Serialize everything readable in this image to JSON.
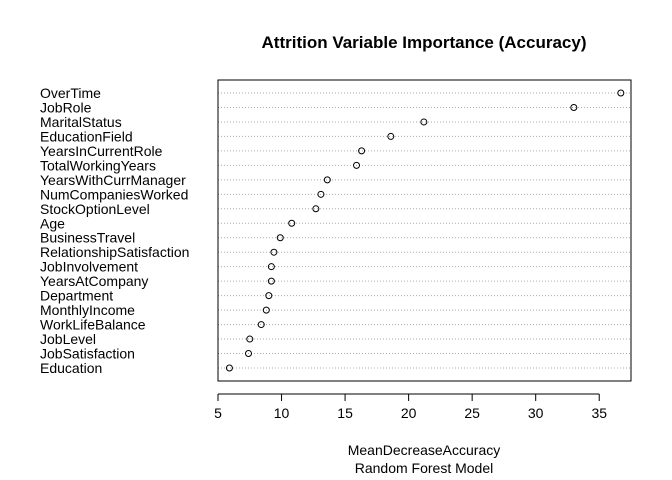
{
  "chart_data": {
    "type": "scatter",
    "title": "Attrition Variable Importance (Accuracy)",
    "xlabel": "MeanDecreaseAccuracy",
    "subtitle": "Random Forest Model",
    "ylabel": "",
    "xlim": [
      5.0,
      37.5
    ],
    "xticks": [
      "5",
      "10",
      "15",
      "20",
      "25",
      "30",
      "35"
    ],
    "grid": "dotted horizontal guide lines",
    "categories": [
      "OverTime",
      "JobRole",
      "MaritalStatus",
      "EducationField",
      "YearsInCurrentRole",
      "TotalWorkingYears",
      "YearsWithCurrManager",
      "NumCompaniesWorked",
      "StockOptionLevel",
      "Age",
      "BusinessTravel",
      "RelationshipSatisfaction",
      "JobInvolvement",
      "YearsAtCompany",
      "Department",
      "MonthlyIncome",
      "WorkLifeBalance",
      "JobLevel",
      "JobSatisfaction",
      "Education"
    ],
    "values": [
      36.7,
      33.0,
      21.2,
      18.6,
      16.3,
      15.9,
      13.6,
      13.1,
      12.7,
      10.8,
      9.9,
      9.4,
      9.2,
      9.2,
      9.0,
      8.8,
      8.4,
      7.5,
      7.4,
      5.9
    ]
  }
}
